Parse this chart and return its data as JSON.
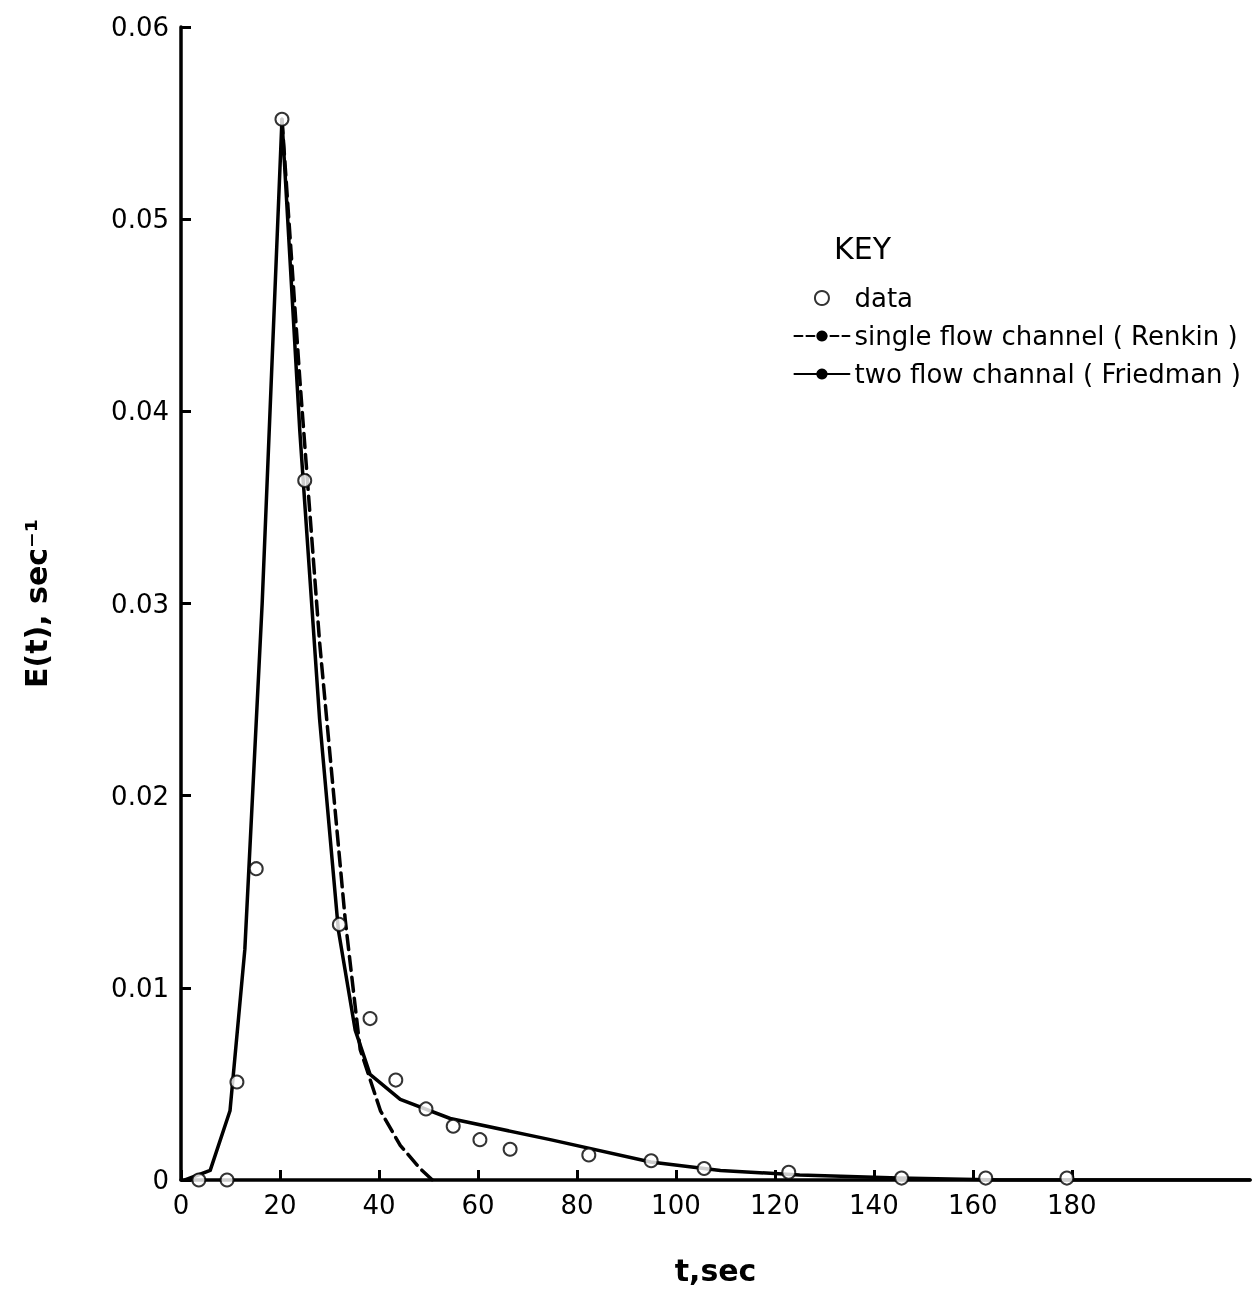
{
  "chart_data": {
    "type": "line",
    "xlabel": "t,sec",
    "ylabel": "E(t), sec⁻¹",
    "legend_title": "KEY",
    "legend": "top right",
    "grid": false,
    "xlim": [
      0,
      216
    ],
    "xticks": [
      0,
      20,
      40,
      60,
      80,
      100,
      120,
      140,
      160,
      180
    ],
    "ylim": [
      0,
      0.06
    ],
    "yticks": [
      0,
      0.01,
      0.02,
      0.03,
      0.04,
      0.05,
      0.06
    ],
    "series": [
      {
        "name": "data",
        "type": "scatter",
        "marker": "circle",
        "color": "#000000",
        "x": [
          3.6,
          9.3,
          11.3,
          15.2,
          20.4,
          25,
          32,
          38.2,
          43.4,
          49.5,
          55,
          60.4,
          66.5,
          82.4,
          95,
          105.7,
          122.8,
          145.6,
          162.6,
          179
        ],
        "values": [
          0,
          0,
          0.0051,
          0.0162,
          0.0552,
          0.0364,
          0.0133,
          0.0084,
          0.0052,
          0.0037,
          0.0028,
          0.0021,
          0.0016,
          0.0013,
          0.001,
          0.0006,
          0.0004,
          0.0001,
          0.0001,
          0.0001
        ]
      },
      {
        "name": "single flow channel ( Renkin )",
        "type": "line",
        "line_style": "dashed",
        "marker": "none",
        "color": "#000000",
        "x": [
          20.4,
          24,
          28,
          33.2,
          36.2,
          40.3,
          44.3,
          48.3,
          50.8
        ],
        "values": [
          0.0552,
          0.0417,
          0.028,
          0.0135,
          0.0068,
          0.0036,
          0.0018,
          0.0006,
          0
        ]
      },
      {
        "name": "two flow channal ( Friedman )",
        "line_style": "solid",
        "marker": "none",
        "color": "#000000",
        "x": [
          0.8,
          5.9,
          9.9,
          12.9,
          16.4,
          20.4,
          24,
          28,
          31.8,
          35.2,
          38.2,
          44.3,
          54.4,
          74.6,
          94.9,
          109,
          125,
          145,
          165.7,
          216
        ],
        "values": [
          0,
          0.0005,
          0.0036,
          0.012,
          0.03,
          0.0552,
          0.039,
          0.024,
          0.013,
          0.0078,
          0.0055,
          0.0042,
          0.0032,
          0.0021,
          0.00094,
          0.0005,
          0.00026,
          0.0001,
          0,
          0
        ]
      }
    ]
  }
}
